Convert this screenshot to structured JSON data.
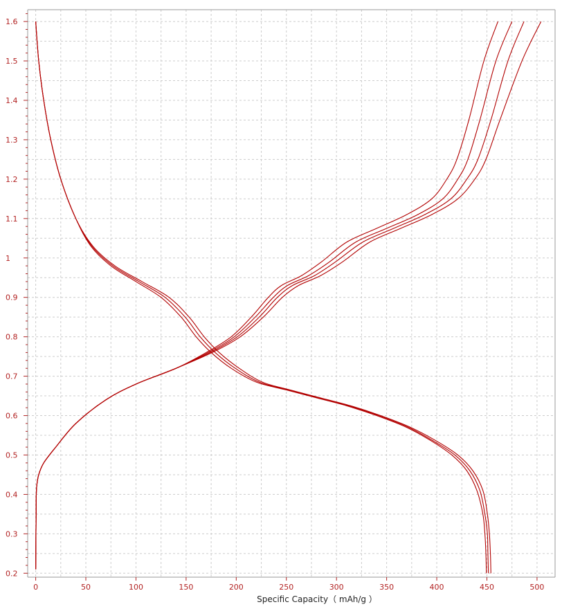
{
  "colors": {
    "series": "#b20000",
    "tick_text": "#b22222",
    "grid": "#cccccc",
    "axis_title": "#222222"
  },
  "chart_data": {
    "type": "line",
    "title": "",
    "xlabel": "Specific Capacity（ mAh/g ）",
    "ylabel": "",
    "xlim": [
      -8,
      518
    ],
    "ylim": [
      0.19,
      1.63
    ],
    "x_ticks": [
      0,
      50,
      100,
      150,
      200,
      250,
      300,
      350,
      400,
      450,
      500
    ],
    "y_ticks": [
      0.2,
      0.3,
      0.4,
      0.5,
      0.6,
      0.7,
      0.8,
      0.9,
      1,
      1.1,
      1.2,
      1.3,
      1.4,
      1.5,
      1.6
    ],
    "x_tick_labels": [
      "0",
      "50",
      "100",
      "150",
      "200",
      "250",
      "300",
      "350",
      "400",
      "450",
      "500"
    ],
    "y_tick_labels": [
      "0.2",
      "0.3",
      "0.4",
      "0.5",
      "0.6",
      "0.7",
      "0.8",
      "0.9",
      "1",
      "1.1",
      "1.2",
      "1.3",
      "1.4",
      "1.5",
      "1.6"
    ],
    "grid": true,
    "legend": "none",
    "series": [
      {
        "x": [
          0,
          3,
          8,
          15,
          25,
          40,
          55,
          75,
          100,
          125,
          145,
          160,
          175,
          195,
          220,
          250,
          280,
          310,
          340,
          370,
          395,
          415,
          430,
          440,
          446,
          448,
          449,
          449.5
        ],
        "y": [
          1.6,
          1.5,
          1.4,
          1.3,
          1.2,
          1.1,
          1.03,
          0.98,
          0.94,
          0.9,
          0.85,
          0.8,
          0.76,
          0.72,
          0.685,
          0.665,
          0.645,
          0.625,
          0.6,
          0.57,
          0.535,
          0.5,
          0.46,
          0.41,
          0.35,
          0.3,
          0.25,
          0.2
        ]
      },
      {
        "x": [
          0,
          3,
          8,
          15,
          25,
          40,
          56,
          77,
          103,
          129,
          149,
          164,
          179,
          199,
          223,
          252,
          282,
          312,
          342,
          372,
          397,
          418,
          433,
          443,
          448,
          450.5,
          451,
          451.5
        ],
        "y": [
          1.6,
          1.5,
          1.4,
          1.3,
          1.2,
          1.1,
          1.03,
          0.98,
          0.94,
          0.9,
          0.85,
          0.8,
          0.76,
          0.72,
          0.685,
          0.665,
          0.645,
          0.625,
          0.6,
          0.57,
          0.535,
          0.5,
          0.46,
          0.41,
          0.35,
          0.3,
          0.25,
          0.2
        ]
      },
      {
        "x": [
          0,
          3,
          8,
          15,
          25,
          40,
          57,
          79,
          106,
          133,
          153,
          168,
          183,
          203,
          226,
          254,
          284,
          314,
          344,
          374,
          400,
          421,
          436,
          446,
          450.5,
          452.5,
          453.5,
          454
        ],
        "y": [
          1.6,
          1.5,
          1.4,
          1.3,
          1.2,
          1.1,
          1.03,
          0.98,
          0.94,
          0.9,
          0.85,
          0.8,
          0.76,
          0.72,
          0.685,
          0.665,
          0.645,
          0.625,
          0.6,
          0.57,
          0.535,
          0.5,
          0.46,
          0.41,
          0.35,
          0.3,
          0.25,
          0.2
        ]
      },
      {
        "x": [
          0,
          0.5,
          1,
          3,
          8,
          20,
          40,
          70,
          100,
          140,
          170,
          195,
          215,
          232,
          245,
          265,
          285,
          310,
          340,
          370,
          395,
          410,
          420,
          432,
          447,
          461
        ],
        "y": [
          0.21,
          0.38,
          0.42,
          0.45,
          0.48,
          0.52,
          0.58,
          0.64,
          0.68,
          0.72,
          0.76,
          0.8,
          0.85,
          0.9,
          0.93,
          0.955,
          0.99,
          1.04,
          1.075,
          1.11,
          1.15,
          1.2,
          1.25,
          1.35,
          1.5,
          1.6
        ]
      },
      {
        "x": [
          0,
          0.5,
          1,
          3,
          8,
          20,
          40,
          70,
          100,
          140,
          172,
          198,
          219,
          237,
          251,
          272,
          293,
          319,
          350,
          381,
          406,
          421,
          431,
          443,
          459,
          475
        ],
        "y": [
          0.21,
          0.38,
          0.42,
          0.45,
          0.48,
          0.52,
          0.58,
          0.64,
          0.68,
          0.72,
          0.76,
          0.8,
          0.85,
          0.9,
          0.93,
          0.955,
          0.99,
          1.04,
          1.075,
          1.11,
          1.15,
          1.2,
          1.25,
          1.35,
          1.5,
          1.6
        ]
      },
      {
        "x": [
          0,
          0.5,
          1,
          3,
          8,
          20,
          40,
          70,
          100,
          140,
          174,
          201,
          223,
          241,
          256,
          278,
          299,
          326,
          357,
          388,
          414,
          430,
          441,
          454,
          471,
          487
        ],
        "y": [
          0.21,
          0.38,
          0.42,
          0.45,
          0.48,
          0.52,
          0.58,
          0.64,
          0.68,
          0.72,
          0.76,
          0.8,
          0.85,
          0.9,
          0.93,
          0.955,
          0.99,
          1.04,
          1.075,
          1.11,
          1.15,
          1.2,
          1.25,
          1.35,
          1.5,
          1.6
        ]
      },
      {
        "x": [
          0,
          0.5,
          1,
          3,
          8,
          20,
          40,
          70,
          100,
          140,
          176,
          204,
          227,
          246,
          262,
          284,
          306,
          333,
          364,
          395,
          421,
          438,
          449,
          463,
          485,
          504
        ],
        "y": [
          0.21,
          0.38,
          0.42,
          0.45,
          0.48,
          0.52,
          0.58,
          0.64,
          0.68,
          0.72,
          0.76,
          0.8,
          0.85,
          0.9,
          0.93,
          0.955,
          0.99,
          1.04,
          1.075,
          1.11,
          1.15,
          1.2,
          1.25,
          1.35,
          1.5,
          1.6
        ]
      }
    ]
  }
}
